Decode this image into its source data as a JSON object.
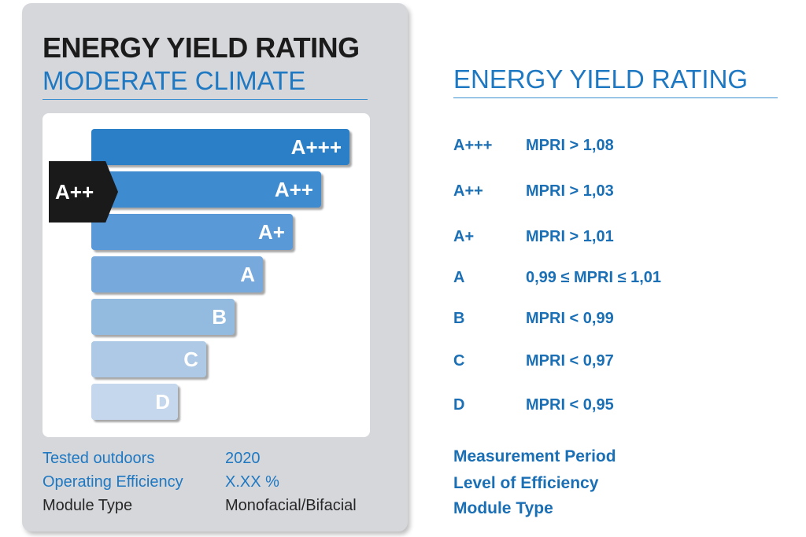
{
  "label": {
    "title": "ENERGY YIELD RATING",
    "subtitle": "MODERATE CLIMATE",
    "bars": [
      {
        "grade": "A+++",
        "color": "#2a7fc6"
      },
      {
        "grade": "A++",
        "color": "#3f8bd0"
      },
      {
        "grade": "A+",
        "color": "#5a99d7"
      },
      {
        "grade": "A",
        "color": "#77a9dc"
      },
      {
        "grade": "B",
        "color": "#93badf"
      },
      {
        "grade": "C",
        "color": "#adc9e5"
      },
      {
        "grade": "D",
        "color": "#c4d7ec"
      }
    ],
    "rating_indicator": "A++",
    "info": [
      {
        "label": "Tested outdoors",
        "value": "2020"
      },
      {
        "label": "Operating Efficiency",
        "value": "X.XX %"
      },
      {
        "label": "Module Type",
        "value": "Monofacial/Bifacial"
      }
    ]
  },
  "legend": {
    "title": "ENERGY YIELD RATING",
    "rows": [
      {
        "grade": "A+++",
        "rule": "MPRI > 1,08"
      },
      {
        "grade": "A++",
        "rule": "MPRI > 1,03"
      },
      {
        "grade": "A+",
        "rule": "MPRI > 1,01"
      },
      {
        "grade": "A",
        "rule": "0,99 ≤ MPRI ≤ 1,01"
      },
      {
        "grade": "B",
        "rule": "MPRI < 0,99"
      },
      {
        "grade": "C",
        "rule": "MPRI < 0,97"
      },
      {
        "grade": "D",
        "rule": "MPRI < 0,95"
      }
    ],
    "fields": [
      "Measurement Period",
      "Level of Efficiency",
      "Module Type"
    ]
  },
  "colors": {
    "accent_blue": "#1e78c2",
    "card_bg": "#d6d7db",
    "indicator_bg": "#1a1a1a"
  }
}
